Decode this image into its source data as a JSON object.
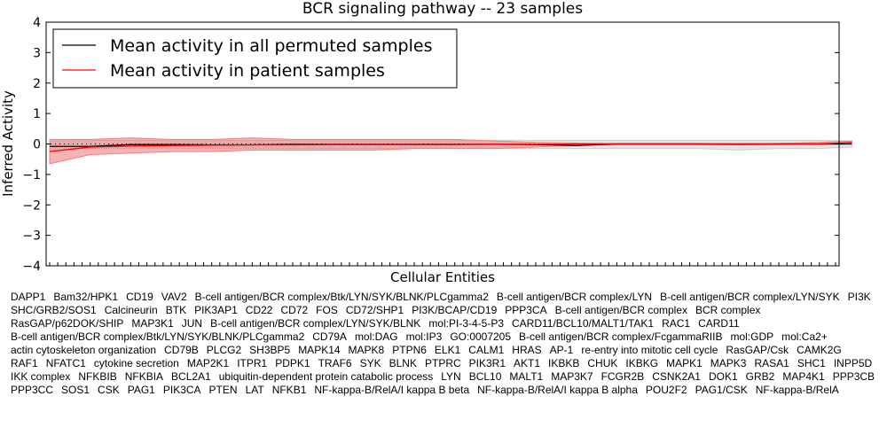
{
  "chart_data": {
    "type": "line",
    "title": "BCR signaling pathway -- 23 samples",
    "xlabel": "Cellular Entities",
    "ylabel": "Inferred Activity",
    "ylim": [
      -4,
      4
    ],
    "yticks": [
      -4,
      -3,
      -2,
      -1,
      0,
      1,
      2,
      3,
      4
    ],
    "ytick_labels": [
      "−4",
      "−3",
      "−2",
      "−1",
      "0",
      "1",
      "2",
      "3",
      "4"
    ],
    "legend": {
      "placement": "top-left",
      "entries": [
        {
          "label": "Mean activity in all permuted samples",
          "color": "#000000"
        },
        {
          "label": "Mean activity in patient samples",
          "color": "#ff0000"
        }
      ]
    },
    "categories": [
      "DAPP1",
      "Bam32/HPK1",
      "CD19",
      "VAV2",
      "B-cell antigen/BCR complex/Btk/LYN/SYK/BLNK/PLCgamma2",
      "B-cell antigen/BCR complex/LYN",
      "B-cell antigen/BCR complex/LYN/SYK",
      "PI3K",
      "SHC/GRB2/SOS1",
      "Calcineurin",
      "BTK",
      "PIK3AP1",
      "CD22",
      "CD72",
      "FOS",
      "CD72/SHP1",
      "PI3K/BCAP/CD19",
      "PPP3CA",
      "B-cell antigen/BCR complex",
      "BCR complex",
      "RasGAP/p62DOK/SHIP",
      "MAP3K1",
      "JUN",
      "B-cell antigen/BCR complex/LYN/SYK/BLNK",
      "mol:PI-3-4-5-P3",
      "CARD11/BCL10/MALT1/TAK1",
      "RAC1",
      "CARD11",
      "B-cell antigen/BCR complex/Btk/LYN/SYK/BLNK/PLCgamma2",
      "CD79A",
      "mol:DAG",
      "mol:IP3",
      "GO:0007205",
      "B-cell antigen/BCR complex/FcgammaRIIB",
      "mol:GDP",
      "mol:Ca2+",
      "actin cytoskeleton organization",
      "CD79B",
      "PLCG2",
      "SH3BP5",
      "MAPK14",
      "MAPK8",
      "PTPN6",
      "ELK1",
      "CALM1",
      "HRAS",
      "AP-1",
      "re-entry into mitotic cell cycle",
      "RasGAP/Csk",
      "CAMK2G",
      "RAF1",
      "NFATC1",
      "cytokine secretion",
      "MAP2K1",
      "ITPR1",
      "PDPK1",
      "TRAF6",
      "SYK",
      "BLNK",
      "PTPRC",
      "PIK3R1",
      "AKT1",
      "IKBKB",
      "CHUK",
      "IKBKG",
      "MAPK1",
      "MAPK3",
      "RASA1",
      "SHC1",
      "INPP5D",
      "IKK complex",
      "NFKBIB",
      "NFKBIA",
      "BCL2A1",
      "ubiquitin-dependent protein catabolic process",
      "LYN",
      "BCL10",
      "MALT1",
      "MAP3K7",
      "FCGR2B",
      "CSNK2A1",
      "DOK1",
      "GRB2",
      "MAP4K1",
      "PPP3CB",
      "PPP3CC",
      "SOS1",
      "CSK",
      "PAG1",
      "PIK3CA",
      "PTEN",
      "LAT",
      "NFKB1",
      "NF-kappa-B/RelA/I kappa B beta",
      "NF-kappa-B/RelA/I kappa B alpha",
      "POU2F2",
      "PAG1/CSK",
      "NF-kappa-B/RelA"
    ],
    "series": [
      {
        "name": "Mean activity in all permuted samples",
        "color": "#000000",
        "x": [
          0,
          5,
          10,
          15,
          20,
          25,
          30,
          35,
          40,
          45,
          50,
          55,
          60,
          65,
          70,
          75,
          80,
          85,
          90,
          95,
          99
        ],
        "values": [
          -0.08,
          -0.08,
          -0.02,
          -0.02,
          -0.03,
          -0.03,
          -0.01,
          -0.01,
          -0.01,
          -0.01,
          -0.01,
          -0.01,
          -0.02,
          -0.05,
          0.0,
          0.0,
          0.0,
          -0.01,
          0.0,
          0.0,
          0.0
        ],
        "band_low": [
          -0.2,
          -0.15,
          -0.15,
          -0.15,
          -0.15,
          -0.15,
          -0.15,
          -0.15,
          -0.15,
          -0.15,
          -0.15,
          -0.15,
          -0.15,
          -0.15,
          -0.15,
          -0.15,
          -0.15,
          -0.2,
          -0.15,
          -0.15,
          -0.1
        ],
        "band_high": [
          0.1,
          0.12,
          0.12,
          0.12,
          0.12,
          0.12,
          0.12,
          0.12,
          0.12,
          0.12,
          0.12,
          0.12,
          0.12,
          0.12,
          0.12,
          0.12,
          0.12,
          0.12,
          0.12,
          0.12,
          0.1
        ]
      },
      {
        "name": "Mean activity in patient samples",
        "color": "#ff0000",
        "x": [
          0,
          5,
          10,
          15,
          20,
          25,
          30,
          35,
          40,
          45,
          50,
          55,
          60,
          65,
          70,
          75,
          80,
          85,
          90,
          95,
          99
        ],
        "values": [
          -0.25,
          -0.1,
          -0.07,
          -0.05,
          -0.04,
          -0.03,
          -0.03,
          -0.02,
          -0.02,
          -0.02,
          -0.02,
          -0.01,
          -0.01,
          0.0,
          0.0,
          0.0,
          0.0,
          0.0,
          0.0,
          0.0,
          0.05
        ],
        "band_low": [
          -0.65,
          -0.35,
          -0.3,
          -0.25,
          -0.25,
          -0.2,
          -0.2,
          -0.2,
          -0.2,
          -0.15,
          -0.15,
          -0.15,
          -0.1,
          -0.05,
          -0.02,
          -0.02,
          -0.02,
          -0.02,
          -0.02,
          -0.02,
          0.0
        ],
        "band_high": [
          0.15,
          0.15,
          0.2,
          0.15,
          0.15,
          0.2,
          0.15,
          0.15,
          0.15,
          0.15,
          0.15,
          0.1,
          0.05,
          0.03,
          0.02,
          0.02,
          0.02,
          0.02,
          0.02,
          0.05,
          0.1
        ]
      }
    ],
    "reference_line": {
      "y": 0,
      "style": "dotted"
    }
  }
}
